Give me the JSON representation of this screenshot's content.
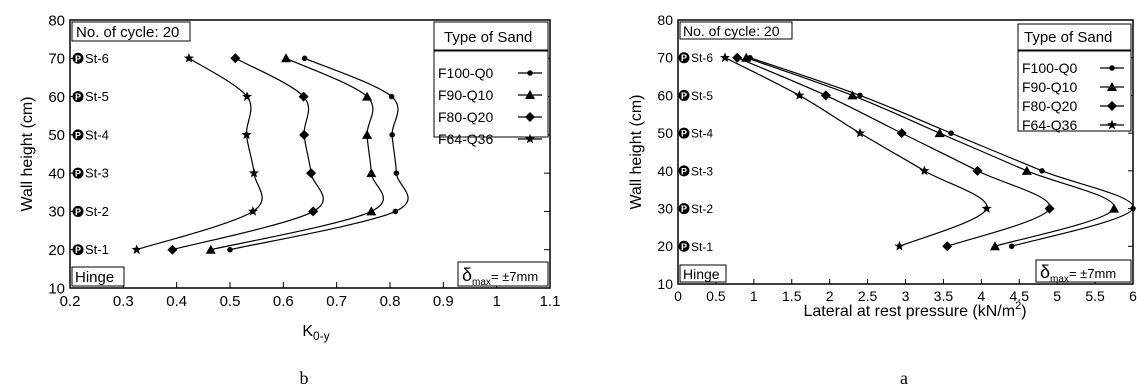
{
  "chart_data": [
    {
      "type": "line",
      "panel_label": "b",
      "xlabel": "K",
      "xlabel_sub": "0-y",
      "ylabel": "Wall height (cm)",
      "xlim": [
        0.2,
        1.1
      ],
      "ylim": [
        10,
        80
      ],
      "xticks": [
        "0.2",
        "0.3",
        "0.4",
        "0.5",
        "0.6",
        "0.7",
        "0.8",
        "0.9",
        "1",
        "1.1"
      ],
      "yticks": [
        "10",
        "20",
        "30",
        "40",
        "50",
        "60",
        "70",
        "80"
      ],
      "cycle_note": "No. of cycle: 20",
      "hinge_note": "Hinge",
      "delta_note": {
        "symbol": "δ",
        "sub": "max",
        "value": "= ±7mm"
      },
      "legend_title": "Type of Sand",
      "sensors": [
        "St-6",
        "St-5",
        "St-4",
        "St-3",
        "St-2",
        "St-1"
      ],
      "sensor_heights": [
        70,
        60,
        50,
        40,
        30,
        20
      ],
      "series": [
        {
          "name": "F100-Q0",
          "marker": "circle",
          "x": [
            0.64,
            0.803,
            0.804,
            0.812,
            0.81,
            0.5
          ],
          "y": [
            70,
            60,
            50,
            40,
            30,
            20
          ]
        },
        {
          "name": "F90-Q10",
          "marker": "triangle",
          "x": [
            0.605,
            0.757,
            0.757,
            0.765,
            0.765,
            0.464
          ],
          "y": [
            70,
            60,
            50,
            40,
            30,
            20
          ]
        },
        {
          "name": "F80-Q20",
          "marker": "diamond",
          "x": [
            0.51,
            0.638,
            0.639,
            0.652,
            0.656,
            0.392
          ],
          "y": [
            70,
            60,
            50,
            40,
            30,
            20
          ]
        },
        {
          "name": "F64-Q36",
          "marker": "star",
          "x": [
            0.423,
            0.532,
            0.531,
            0.545,
            0.543,
            0.325
          ],
          "y": [
            70,
            60,
            50,
            40,
            30,
            20
          ]
        }
      ]
    },
    {
      "type": "line",
      "panel_label": "a",
      "xlabel": "Lateral at rest pressure (kN/m",
      "xlabel_sup": "2",
      "xlabel_end": ")",
      "ylabel": "Wall height (cm)",
      "xlim": [
        0,
        6
      ],
      "ylim": [
        10,
        80
      ],
      "xticks": [
        "0",
        "0.5",
        "1",
        "1.5",
        "2",
        "2.5",
        "3",
        "3.5",
        "4",
        "4.5",
        "5",
        "5.5",
        "6"
      ],
      "yticks": [
        "10",
        "20",
        "30",
        "40",
        "50",
        "60",
        "70",
        "80"
      ],
      "cycle_note": "No. of cycle: 20",
      "hinge_note": "Hinge",
      "delta_note": {
        "symbol": "δ",
        "sub": "max",
        "value": "= ±7mm"
      },
      "legend_title": "Type of Sand",
      "sensors": [
        "St-6",
        "St-5",
        "St-4",
        "St-3",
        "St-2",
        "St-1"
      ],
      "sensor_heights": [
        70,
        60,
        50,
        40,
        30,
        20
      ],
      "series": [
        {
          "name": "F100-Q0",
          "marker": "circle",
          "x": [
            0.95,
            2.4,
            3.6,
            4.8,
            6.0,
            4.4
          ],
          "y": [
            70,
            60,
            50,
            40,
            30,
            20
          ]
        },
        {
          "name": "F90-Q10",
          "marker": "triangle",
          "x": [
            0.9,
            2.3,
            3.45,
            4.6,
            5.75,
            4.18
          ],
          "y": [
            70,
            60,
            50,
            40,
            30,
            20
          ]
        },
        {
          "name": "F80-Q20",
          "marker": "diamond",
          "x": [
            0.78,
            1.95,
            2.95,
            3.95,
            4.9,
            3.55
          ],
          "y": [
            70,
            60,
            50,
            40,
            30,
            20
          ]
        },
        {
          "name": "F64-Q36",
          "marker": "star",
          "x": [
            0.62,
            1.6,
            2.4,
            3.25,
            4.07,
            2.92
          ],
          "y": [
            70,
            60,
            50,
            40,
            30,
            20
          ]
        }
      ]
    }
  ]
}
